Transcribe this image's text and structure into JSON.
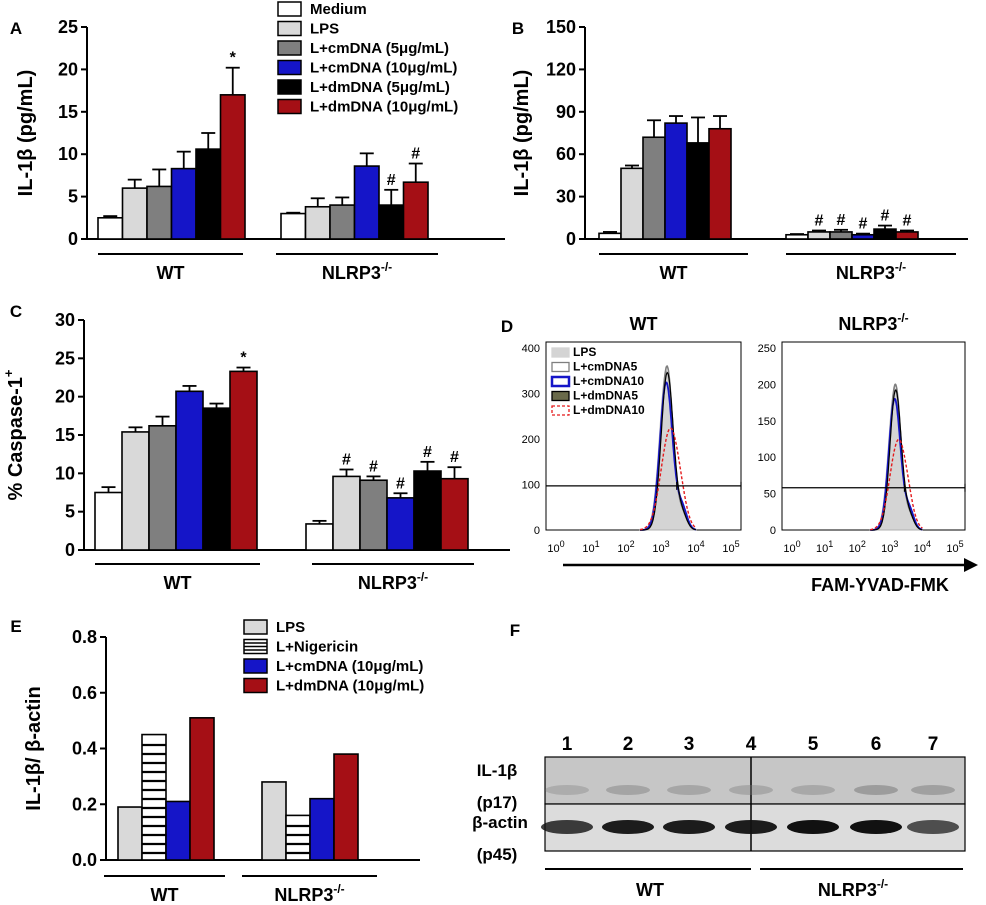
{
  "colors": {
    "medium": "#ffffff",
    "lps": "#d9d9d9",
    "cmdna5": "#7f7f7f",
    "cmdna10": "#1515c8",
    "dmdna5": "#000000",
    "dmdna10": "#a50f15",
    "flow_fill": "#d4d4d4",
    "flow_red": "#e41a1c"
  },
  "chart_data": [
    {
      "panel": "A",
      "type": "bar",
      "ylabel": "IL-1β (pg/mL)",
      "ylim": [
        0,
        25
      ],
      "yticks": [
        "0",
        "5",
        "10",
        "15",
        "20",
        "25"
      ],
      "groups": [
        "WT",
        "NLRP3"
      ],
      "group_sup": [
        "",
        "-/-"
      ],
      "legend": [
        "Medium",
        "LPS",
        "L+cmDNA (5μg/mL)",
        "L+cmDNA (10μg/mL)",
        "L+dmDNA (5μg/mL)",
        "L+dmDNA (10μg/mL)"
      ],
      "series": [
        {
          "name": "Medium",
          "values": [
            2.5,
            3.0
          ],
          "errors": [
            0.2,
            0.1
          ],
          "marks": [
            "",
            ""
          ]
        },
        {
          "name": "LPS",
          "values": [
            6.0,
            3.8
          ],
          "errors": [
            1.0,
            1.0
          ],
          "marks": [
            "",
            ""
          ]
        },
        {
          "name": "L+cmDNA (5μg/mL)",
          "values": [
            6.2,
            4.0
          ],
          "errors": [
            2.0,
            0.9
          ],
          "marks": [
            "",
            ""
          ]
        },
        {
          "name": "L+cmDNA (10μg/mL)",
          "values": [
            8.3,
            8.6
          ],
          "errors": [
            2.0,
            1.5
          ],
          "marks": [
            "",
            ""
          ]
        },
        {
          "name": "L+dmDNA (5μg/mL)",
          "values": [
            10.6,
            4.0
          ],
          "errors": [
            1.9,
            1.8
          ],
          "marks": [
            "",
            "#"
          ]
        },
        {
          "name": "L+dmDNA (10μg/mL)",
          "values": [
            17.0,
            6.7
          ],
          "errors": [
            3.2,
            2.2
          ],
          "marks": [
            "*",
            "#"
          ]
        }
      ]
    },
    {
      "panel": "B",
      "type": "bar",
      "ylabel": "IL-1β (pg/mL)",
      "ylim": [
        0,
        150
      ],
      "yticks": [
        "0",
        "30",
        "60",
        "90",
        "120",
        "150"
      ],
      "groups": [
        "WT",
        "NLRP3"
      ],
      "group_sup": [
        "",
        "-/-"
      ],
      "series": [
        {
          "name": "Medium",
          "values": [
            4,
            3
          ],
          "errors": [
            1.0,
            0.5
          ],
          "marks": [
            "",
            ""
          ]
        },
        {
          "name": "LPS",
          "values": [
            50,
            5
          ],
          "errors": [
            2,
            1.0
          ],
          "marks": [
            "",
            "#"
          ]
        },
        {
          "name": "L+cmDNA (5μg/mL)",
          "values": [
            72,
            5
          ],
          "errors": [
            12,
            1.5
          ],
          "marks": [
            "",
            "#"
          ]
        },
        {
          "name": "L+cmDNA (10μg/mL)",
          "values": [
            82,
            3
          ],
          "errors": [
            5,
            0.8
          ],
          "marks": [
            "",
            "#"
          ]
        },
        {
          "name": "L+dmDNA (5μg/mL)",
          "values": [
            68,
            7
          ],
          "errors": [
            18,
            2.5
          ],
          "marks": [
            "",
            "#"
          ]
        },
        {
          "name": "L+dmDNA (10μg/mL)",
          "values": [
            78,
            5
          ],
          "errors": [
            9,
            1.0
          ],
          "marks": [
            "",
            "#"
          ]
        }
      ]
    },
    {
      "panel": "C",
      "type": "bar",
      "ylabel": "% Caspase-1",
      "ylabel_sup": "+",
      "ylim": [
        0,
        30
      ],
      "yticks": [
        "0",
        "5",
        "10",
        "15",
        "20",
        "25",
        "30"
      ],
      "groups": [
        "WT",
        "NLRP3"
      ],
      "group_sup": [
        "",
        "-/-"
      ],
      "series": [
        {
          "name": "Medium",
          "values": [
            7.5,
            3.4
          ],
          "errors": [
            0.7,
            0.4
          ],
          "marks": [
            "",
            ""
          ]
        },
        {
          "name": "LPS",
          "values": [
            15.4,
            9.6
          ],
          "errors": [
            0.6,
            0.9
          ],
          "marks": [
            "",
            "#"
          ]
        },
        {
          "name": "L+cmDNA (5μg/mL)",
          "values": [
            16.2,
            9.1
          ],
          "errors": [
            1.2,
            0.5
          ],
          "marks": [
            "",
            "#"
          ]
        },
        {
          "name": "L+cmDNA (10μg/mL)",
          "values": [
            20.7,
            6.8
          ],
          "errors": [
            0.7,
            0.6
          ],
          "marks": [
            "",
            "#"
          ]
        },
        {
          "name": "L+dmDNA (5μg/mL)",
          "values": [
            18.5,
            10.3
          ],
          "errors": [
            0.6,
            1.2
          ],
          "marks": [
            "",
            "#"
          ]
        },
        {
          "name": "L+dmDNA (10μg/mL)",
          "values": [
            23.3,
            9.3
          ],
          "errors": [
            0.5,
            1.5
          ],
          "marks": [
            "*",
            "#"
          ]
        }
      ]
    },
    {
      "panel": "D",
      "type": "histogram",
      "xlabel": "FAM-YVAD-FMK",
      "xticks": [
        "0",
        "1",
        "2",
        "3",
        "4",
        "5"
      ],
      "legend": [
        "LPS",
        "L+cmDNA5",
        "L+cmDNA10",
        "L+dmDNA5",
        "L+dmDNA10"
      ],
      "plots": [
        {
          "title": "WT",
          "title_sup": "",
          "yticks": [
            "0",
            "100",
            "200",
            "300",
            "400"
          ],
          "ylim": [
            0,
            400
          ],
          "gate": 97,
          "peak": 360
        },
        {
          "title": "NLRP3",
          "title_sup": "-/-",
          "yticks": [
            "0",
            "50",
            "100",
            "150",
            "200",
            "250"
          ],
          "ylim": [
            0,
            250
          ],
          "gate": 58,
          "peak": 200
        }
      ]
    },
    {
      "panel": "E",
      "type": "bar",
      "ylabel": "IL-1β/ β-actin",
      "ylim": [
        0,
        0.8
      ],
      "yticks": [
        "0.0",
        "0.2",
        "0.4",
        "0.6",
        "0.8"
      ],
      "groups": [
        "WT",
        "NLRP3"
      ],
      "group_sup": [
        "",
        "-/-"
      ],
      "legend": [
        "LPS",
        "L+Nigericin",
        "L+cmDNA (10μg/mL)",
        "L+dmDNA (10μg/mL)"
      ],
      "series": [
        {
          "name": "LPS",
          "values": [
            0.19,
            0.28
          ]
        },
        {
          "name": "L+Nigericin",
          "values": [
            0.45,
            0.16
          ]
        },
        {
          "name": "L+cmDNA (10μg/mL)",
          "values": [
            0.21,
            0.22
          ]
        },
        {
          "name": "L+dmDNA (10μg/mL)",
          "values": [
            0.51,
            0.38
          ]
        }
      ]
    },
    {
      "panel": "F",
      "type": "blot",
      "lanes": [
        "1",
        "2",
        "3",
        "4",
        "5",
        "6",
        "7"
      ],
      "rows": [
        {
          "label": "IL-1β",
          "sub": "(p17)"
        },
        {
          "label": "β-actin",
          "sub": "(p45)"
        }
      ],
      "groups": [
        "WT",
        "NLRP3"
      ],
      "group_sup": [
        "",
        "-/-"
      ]
    }
  ]
}
